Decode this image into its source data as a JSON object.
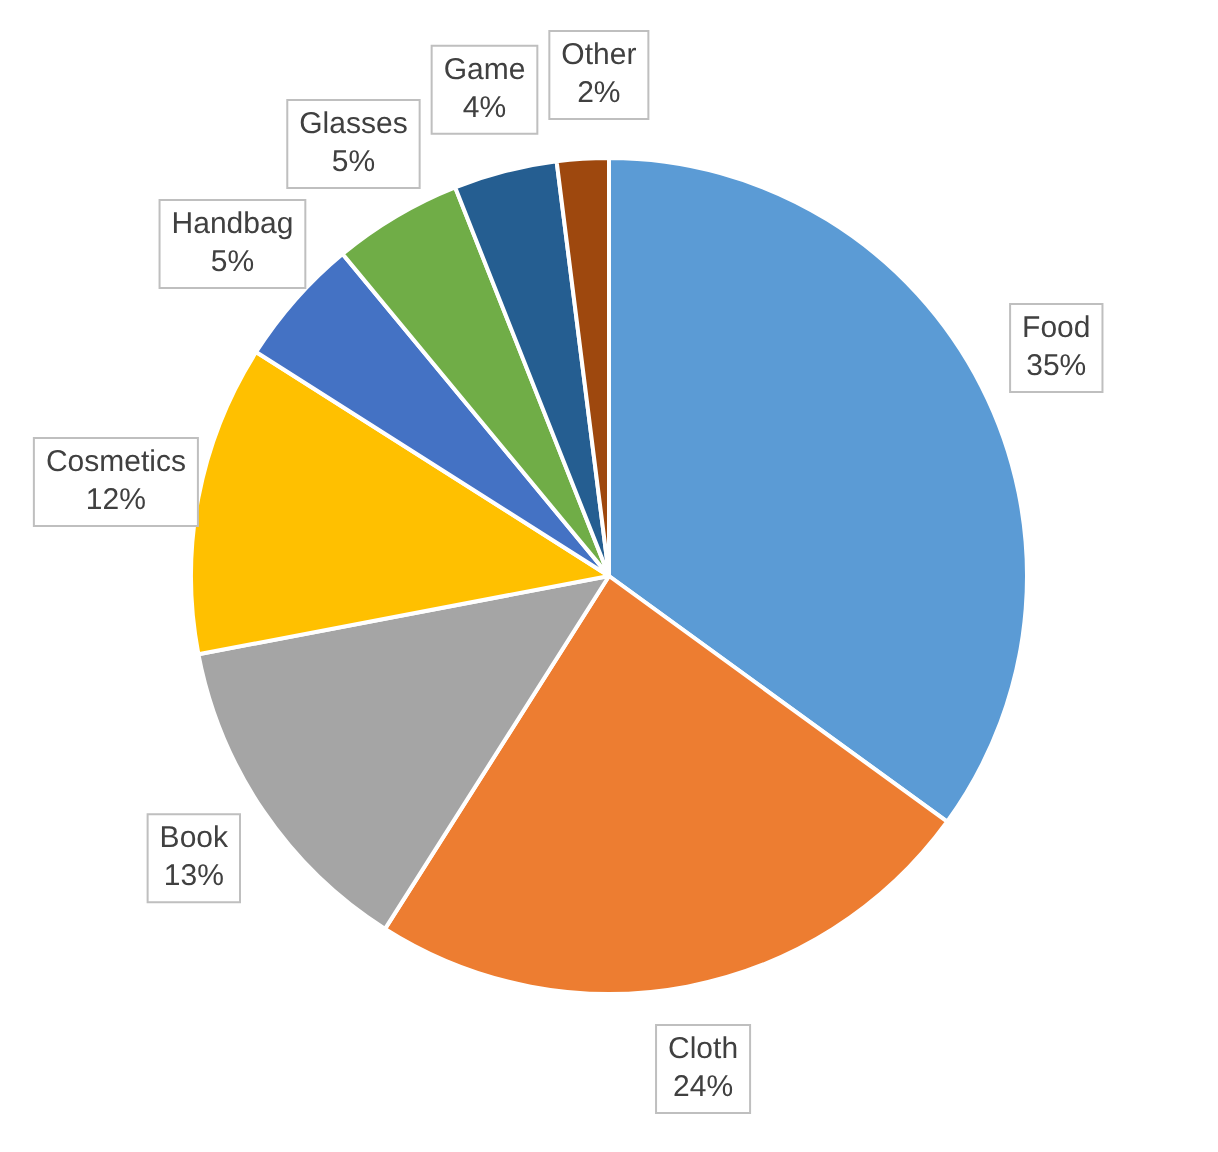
{
  "chart_data": {
    "type": "pie",
    "categories": [
      "Food",
      "Cloth",
      "Book",
      "Cosmetics",
      "Handbag",
      "Glasses",
      "Game",
      "Other"
    ],
    "values": [
      35,
      24,
      13,
      12,
      5,
      5,
      4,
      2
    ],
    "value_labels": [
      "35%",
      "24%",
      "13%",
      "12%",
      "5%",
      "5%",
      "4%",
      "2%"
    ],
    "colors": [
      "#5b9bd5",
      "#ed7d31",
      "#a5a5a5",
      "#ffc000",
      "#4472c4",
      "#70ad47",
      "#255e91",
      "#9e480e"
    ],
    "legend": false
  }
}
